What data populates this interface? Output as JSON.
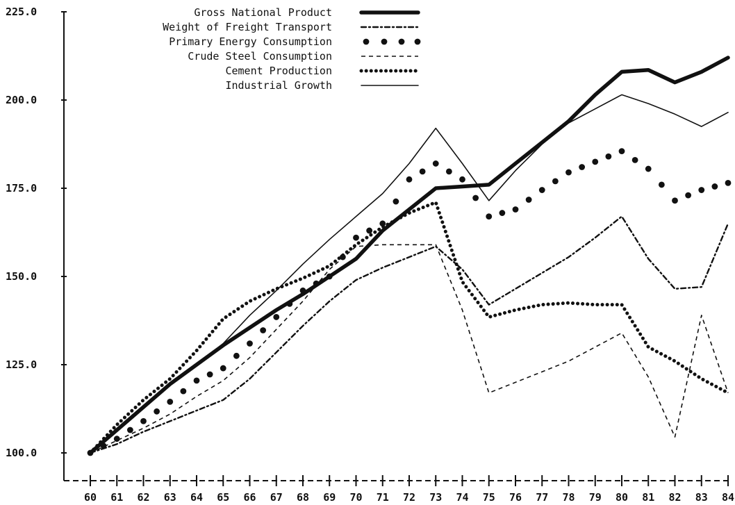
{
  "chart_data": {
    "type": "line",
    "x": [
      "60",
      "61",
      "62",
      "63",
      "64",
      "65",
      "66",
      "67",
      "68",
      "69",
      "70",
      "71",
      "72",
      "73",
      "74",
      "75",
      "76",
      "77",
      "78",
      "79",
      "80",
      "81",
      "82",
      "83",
      "84"
    ],
    "y_ticks": [
      "100.0",
      "125.0",
      "150.0",
      "175.0",
      "200.0",
      "225.0"
    ],
    "ylim": [
      100,
      225
    ],
    "grid": false,
    "legend_position": "top-center",
    "series": [
      {
        "name": "Gross National Product",
        "style": "thick-solid",
        "values": [
          100,
          106.5,
          113,
          119.5,
          125,
          130.5,
          135.5,
          140.5,
          145,
          150,
          155,
          163,
          169,
          175,
          175.5,
          176,
          182,
          188,
          194,
          201.5,
          208,
          208.5,
          205,
          208,
          212
        ]
      },
      {
        "name": "Weight of Freight Transport",
        "style": "dash-dot",
        "values": [
          100,
          102.5,
          106,
          109,
          112,
          115,
          121,
          128.5,
          136,
          143,
          149,
          152.5,
          155.5,
          158.5,
          152,
          142,
          146.5,
          151,
          155.5,
          161,
          167,
          155,
          146.5,
          147,
          165
        ]
      },
      {
        "name": "Primary Energy Consumption",
        "style": "large-dots",
        "values": [
          100,
          104,
          109,
          114.5,
          120.5,
          124,
          131,
          138.5,
          146,
          150,
          161,
          165,
          177.5,
          182,
          177.5,
          167,
          169,
          174.5,
          179.5,
          182.5,
          185.5,
          180.5,
          171.5,
          174.5,
          176.5
        ]
      },
      {
        "name": "Crude Steel Consumption",
        "style": "dashed",
        "values": [
          100,
          103.5,
          107,
          111,
          116,
          120.5,
          127,
          135,
          143,
          152,
          158.5,
          159,
          159,
          159,
          140.5,
          117,
          120,
          123,
          126,
          130,
          134,
          121.5,
          104.5,
          139,
          117
        ]
      },
      {
        "name": "Cement Production",
        "style": "dense-dots",
        "values": [
          100,
          108,
          115,
          121,
          129,
          138,
          143,
          146.5,
          149.5,
          153,
          159,
          164,
          168,
          171,
          148.5,
          138.5,
          140.5,
          142,
          142.5,
          142,
          142,
          130,
          126,
          121,
          117
        ]
      },
      {
        "name": "Industrial Growth",
        "style": "thin-solid",
        "values": [
          100,
          106.5,
          113,
          119.5,
          125,
          131,
          139,
          146,
          153.5,
          160.5,
          167,
          173.5,
          182,
          192,
          182,
          171.5,
          180,
          187.5,
          193.5,
          197.5,
          201.5,
          199,
          196,
          192.5,
          196.5
        ]
      }
    ]
  }
}
